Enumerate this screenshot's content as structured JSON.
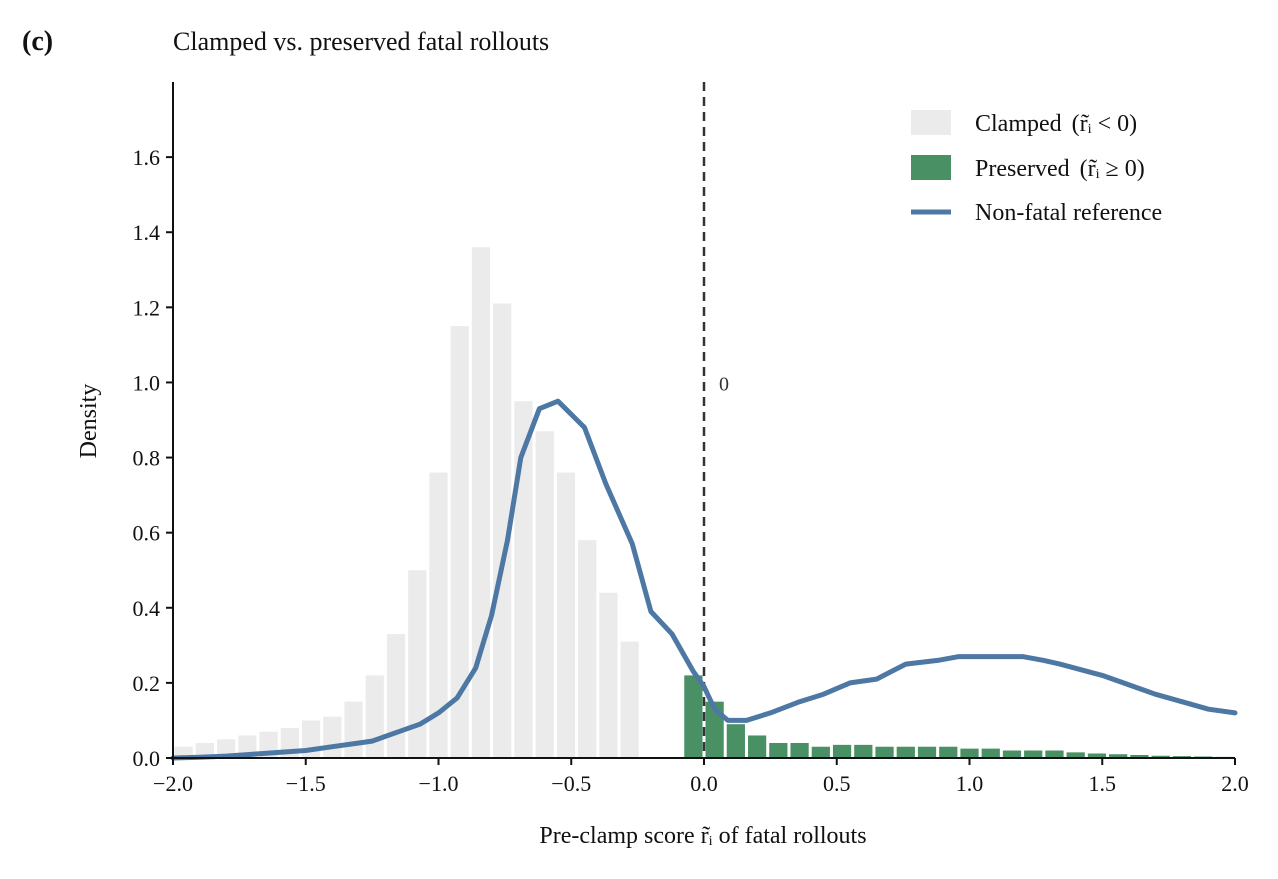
{
  "panel_label": "(c)",
  "colors": {
    "clamped": "#ebebeb",
    "preserved": "#4a9065",
    "reference": "#4e78a4",
    "zero_line": "#333333",
    "axis": "#111111"
  },
  "chart_data": {
    "type": "bar",
    "title": "Clamped vs. preserved fatal rollouts",
    "xlabel": "Pre-clamp score r̃ᵢ of fatal rollouts",
    "ylabel": "Density",
    "xlim": [
      -2.0,
      2.0
    ],
    "ylim": [
      0.0,
      1.8
    ],
    "grid": false,
    "legend_position": "top-right",
    "x_ticks": [
      "−2.0",
      "−1.5",
      "−1.0",
      "−0.5",
      "0.0",
      "0.5",
      "1.0",
      "1.5",
      "2.0"
    ],
    "x_tick_values": [
      -2.0,
      -1.5,
      -1.0,
      -0.5,
      0.0,
      0.5,
      1.0,
      1.5,
      2.0
    ],
    "y_ticks": [
      "0.0",
      "0.2",
      "0.4",
      "0.6",
      "0.8",
      "1.0",
      "1.2",
      "1.4",
      "1.6"
    ],
    "y_tick_values": [
      0.0,
      0.2,
      0.4,
      0.6,
      0.8,
      1.0,
      1.2,
      1.4,
      1.6
    ],
    "bin_width": 0.08,
    "clamped": {
      "legend": "Clamped",
      "legend_cond": "(r̃ᵢ < 0)",
      "bin_centers": [
        -1.96,
        -1.88,
        -1.8,
        -1.72,
        -1.64,
        -1.56,
        -1.48,
        -1.4,
        -1.32,
        -1.24,
        -1.16,
        -1.08,
        -1.0,
        -0.92,
        -0.84,
        -0.76,
        -0.68,
        -0.6,
        -0.52,
        -0.44,
        -0.36,
        -0.28,
        -0.2,
        -0.12,
        -0.04
      ],
      "values": [
        0.03,
        0.04,
        0.05,
        0.06,
        0.07,
        0.08,
        0.1,
        0.11,
        0.15,
        0.22,
        0.33,
        0.5,
        0.76,
        1.15,
        1.36,
        1.21,
        0.95,
        0.87,
        0.76,
        0.58,
        0.44,
        0.31,
        0.0,
        0.0,
        0.0
      ]
    },
    "preserved": {
      "legend": "Preserved",
      "legend_cond": "(r̃ᵢ ≥ 0)",
      "bin_centers": [
        -0.04,
        0.04,
        0.12,
        0.2,
        0.28,
        0.36,
        0.44,
        0.52,
        0.6,
        0.68,
        0.76,
        0.84,
        0.92,
        1.0,
        1.08,
        1.16,
        1.24,
        1.32,
        1.4,
        1.48,
        1.56,
        1.64,
        1.72,
        1.8,
        1.88,
        1.96
      ],
      "values": [
        0.22,
        0.15,
        0.09,
        0.06,
        0.04,
        0.04,
        0.03,
        0.035,
        0.035,
        0.03,
        0.03,
        0.03,
        0.03,
        0.025,
        0.025,
        0.02,
        0.02,
        0.02,
        0.015,
        0.012,
        0.01,
        0.008,
        0.006,
        0.005,
        0.004,
        0.003
      ]
    },
    "reference": {
      "legend": "Non-fatal reference",
      "x": [
        -2.0,
        -1.9,
        -1.8,
        -1.7,
        -1.6,
        -1.5,
        -1.4,
        -1.3,
        -1.25,
        -1.15,
        -1.07,
        -1.0,
        -0.93,
        -0.86,
        -0.8,
        -0.74,
        -0.69,
        -0.62,
        -0.55,
        -0.45,
        -0.37,
        -0.27,
        -0.2,
        -0.12,
        -0.04,
        0.0,
        0.04,
        0.09,
        0.16,
        0.25,
        0.36,
        0.45,
        0.55,
        0.65,
        0.76,
        0.88,
        0.96,
        1.0,
        1.1,
        1.2,
        1.28,
        1.34,
        1.5,
        1.7,
        1.9,
        2.0
      ],
      "y": [
        0.0,
        0.002,
        0.005,
        0.01,
        0.015,
        0.02,
        0.03,
        0.04,
        0.045,
        0.07,
        0.09,
        0.12,
        0.16,
        0.24,
        0.38,
        0.58,
        0.8,
        0.93,
        0.95,
        0.88,
        0.73,
        0.57,
        0.39,
        0.33,
        0.23,
        0.19,
        0.13,
        0.1,
        0.1,
        0.12,
        0.15,
        0.17,
        0.2,
        0.21,
        0.25,
        0.26,
        0.27,
        0.27,
        0.27,
        0.27,
        0.26,
        0.25,
        0.22,
        0.17,
        0.13,
        0.12
      ]
    },
    "annotation": "0",
    "annotation_x": 0.0
  }
}
